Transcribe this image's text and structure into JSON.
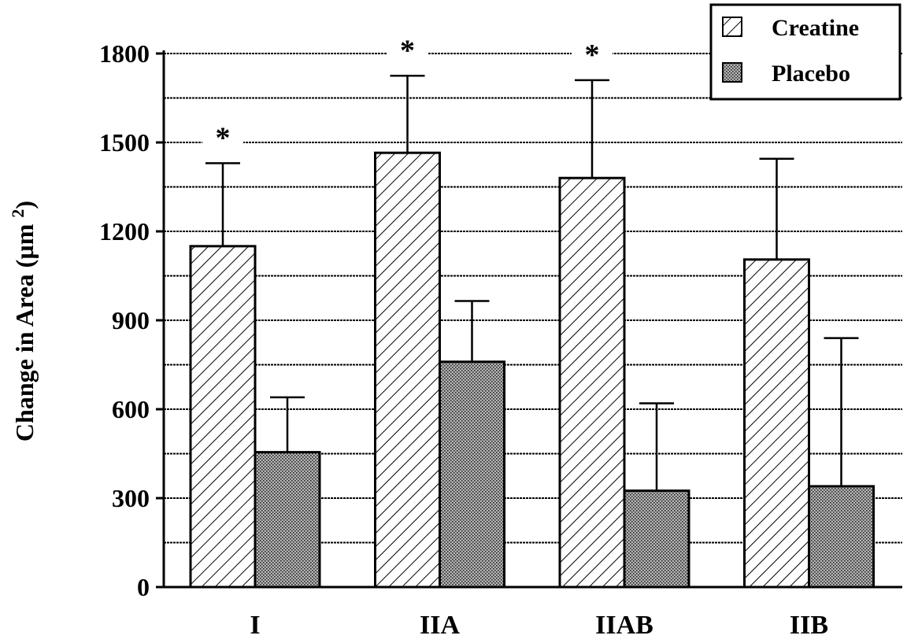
{
  "chart_data": {
    "type": "bar",
    "categories": [
      "I",
      "IIA",
      "IIAB",
      "IIB"
    ],
    "series": [
      {
        "name": "Creatine",
        "values": [
          1150,
          1465,
          1380,
          1105
        ],
        "error": [
          280,
          260,
          330,
          340
        ],
        "pattern": "hatch"
      },
      {
        "name": "Placebo",
        "values": [
          455,
          760,
          325,
          340
        ],
        "error": [
          185,
          205,
          295,
          500
        ],
        "pattern": "stipple"
      }
    ],
    "significance": [
      "*",
      "*",
      "*",
      ""
    ],
    "ylabel": "Change in Area (µm 2)",
    "ylabel_parts": {
      "main": "Change in Area (µm ",
      "sup": "2",
      "close": ")"
    },
    "xlabel": "",
    "ylim": [
      0,
      1800
    ],
    "yticks": [
      0,
      300,
      600,
      900,
      1200,
      1500,
      1800
    ],
    "grid": true,
    "legend": "top-right",
    "colors": {
      "bar_fill": "#ffffff",
      "stroke": "#000000",
      "grid": "#000000",
      "stipple": "#8c8c8c"
    }
  }
}
